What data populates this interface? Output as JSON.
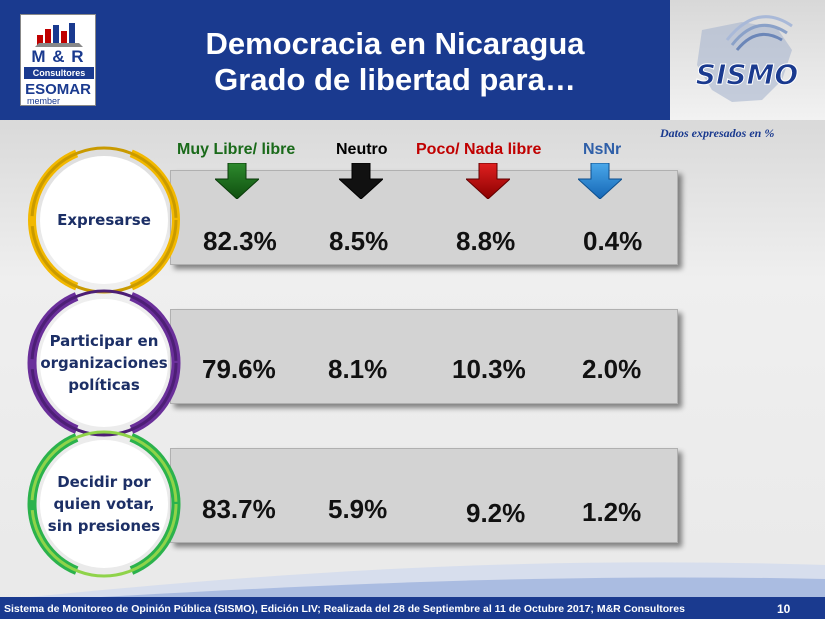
{
  "header": {
    "title_line1": "Democracia en Nicaragua",
    "title_line2": "Grado de libertad para…"
  },
  "logo_mr": {
    "line1": "M & R",
    "line2": "Consultores",
    "line3": "ESOMAR",
    "line4": "member"
  },
  "logo_sismo": {
    "text": "SISMO"
  },
  "note": "Datos expresados en  %",
  "columns": [
    {
      "label": "Muy Libre/ libre",
      "color": "#1a6a1a"
    },
    {
      "label": "Neutro",
      "color": "#000000"
    },
    {
      "label": "Poco/ Nada libre",
      "color": "#c00000"
    },
    {
      "label": "NsNr",
      "color": "#2f5fa8"
    }
  ],
  "rows": [
    {
      "label": "Expresarse",
      "ring_color": "#f2b800",
      "values": [
        "82.3%",
        "8.5%",
        "8.8%",
        "0.4%"
      ]
    },
    {
      "label": "Participar en organizaciones políticas",
      "ring_color": "#6a2f9a",
      "values": [
        "79.6%",
        "8.1%",
        "10.3%",
        "2.0%"
      ]
    },
    {
      "label": "Decidir por quien votar, sin presiones",
      "ring_color": "#2bb24c",
      "values": [
        "83.7%",
        "5.9%",
        "9.2%",
        "1.2%"
      ]
    }
  ],
  "footer": {
    "text": "Sistema de Monitoreo de Opinión Pública (SISMO), Edición LIV; Realizada del 28 de Septiembre al 11 de Octubre 2017; M&R Consultores",
    "page": "10"
  }
}
